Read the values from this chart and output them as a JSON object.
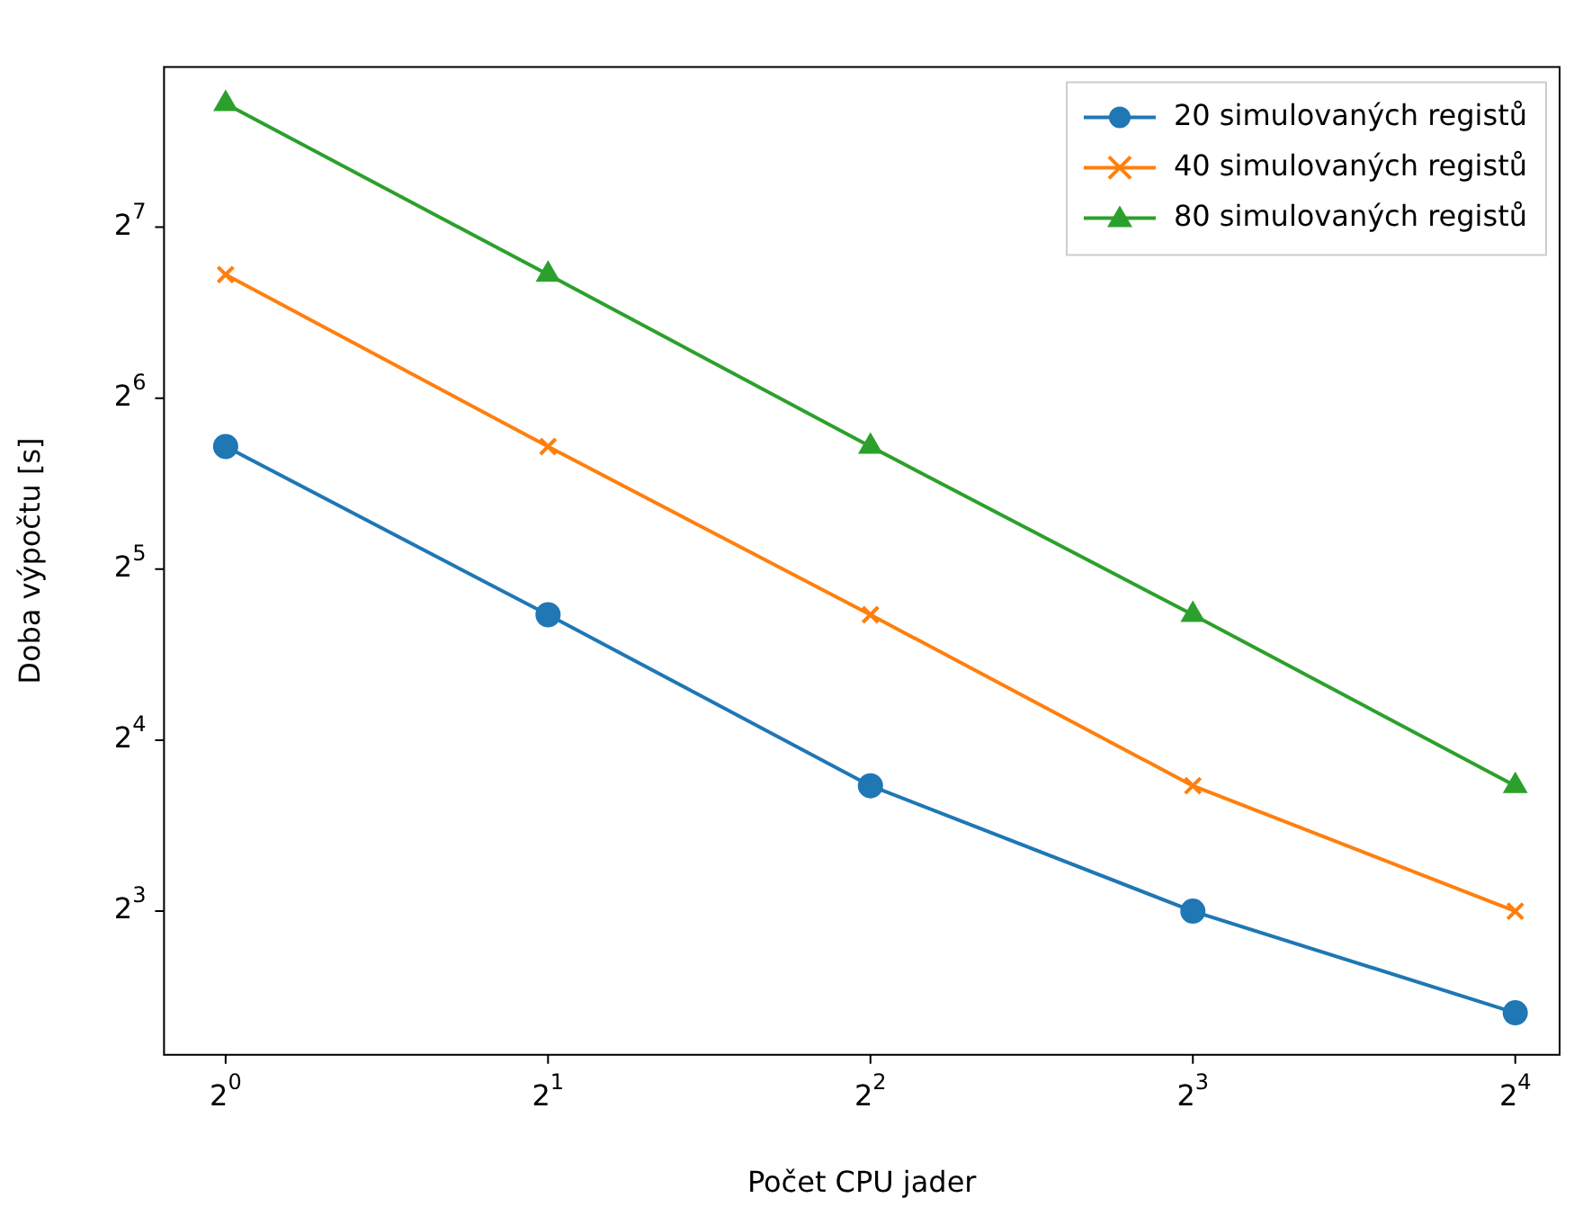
{
  "chart_data": {
    "type": "line",
    "xlabel": "Počet CPU jader",
    "ylabel": "Doba výpočtu [s]",
    "log": "xy",
    "grid": false,
    "legend": "top right",
    "x": [
      1,
      2,
      4,
      8,
      16
    ],
    "series": [
      {
        "name": "20 simulovaných registů",
        "color": "#1f77b4",
        "marker": "circle",
        "values": [
          52.6,
          26.6,
          13.3,
          8,
          5.3
        ]
      },
      {
        "name": "40 simulovaných registů",
        "color": "#ff7f0e",
        "marker": "cross",
        "values": [
          105.6,
          52.6,
          26.6,
          13.3,
          8
        ]
      },
      {
        "name": "80 simulovaných registů",
        "color": "#2ca02c",
        "marker": "triangle",
        "values": [
          211,
          105.6,
          52.6,
          26.6,
          13.3
        ]
      }
    ],
    "xlim": [
      0.876,
      17.6
    ],
    "ylim": [
      4.47,
      245
    ],
    "xticks": [
      {
        "value": 1,
        "label": "2$^{0}$"
      },
      {
        "value": 2,
        "label": "2$^{1}$"
      },
      {
        "value": 4,
        "label": "2$^{2}$"
      },
      {
        "value": 8,
        "label": "2$^{3}$"
      },
      {
        "value": 16,
        "label": "2$^{4}$"
      }
    ],
    "yticks": [
      {
        "value": 8,
        "label": "2$^{3}$"
      },
      {
        "value": 16,
        "label": "2$^{4}$"
      },
      {
        "value": 32,
        "label": "2$^{5}$"
      },
      {
        "value": 64,
        "label": "2$^{6}$"
      },
      {
        "value": 128,
        "label": "2$^{7}$"
      }
    ]
  }
}
